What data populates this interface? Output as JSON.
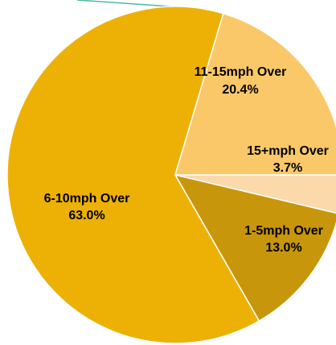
{
  "chart_data": {
    "type": "pie",
    "start_angle_deg": 0,
    "direction": "clockwise",
    "slices": [
      {
        "label": "15+mph Over",
        "value": 3.7,
        "value_label": "3.7%",
        "color": "#FBD9AA"
      },
      {
        "label": "1-5mph Over",
        "value": 13.0,
        "value_label": "13.0%",
        "color": "#C8960A"
      },
      {
        "label": "6-10mph Over",
        "value": 63.0,
        "value_label": "63.0%",
        "color": "#EDB106"
      },
      {
        "label": "11-15mph Over",
        "value": 20.4,
        "value_label": "20.4%",
        "color": "#FAC869"
      }
    ],
    "leader_line_color": "#4CB9A8"
  }
}
